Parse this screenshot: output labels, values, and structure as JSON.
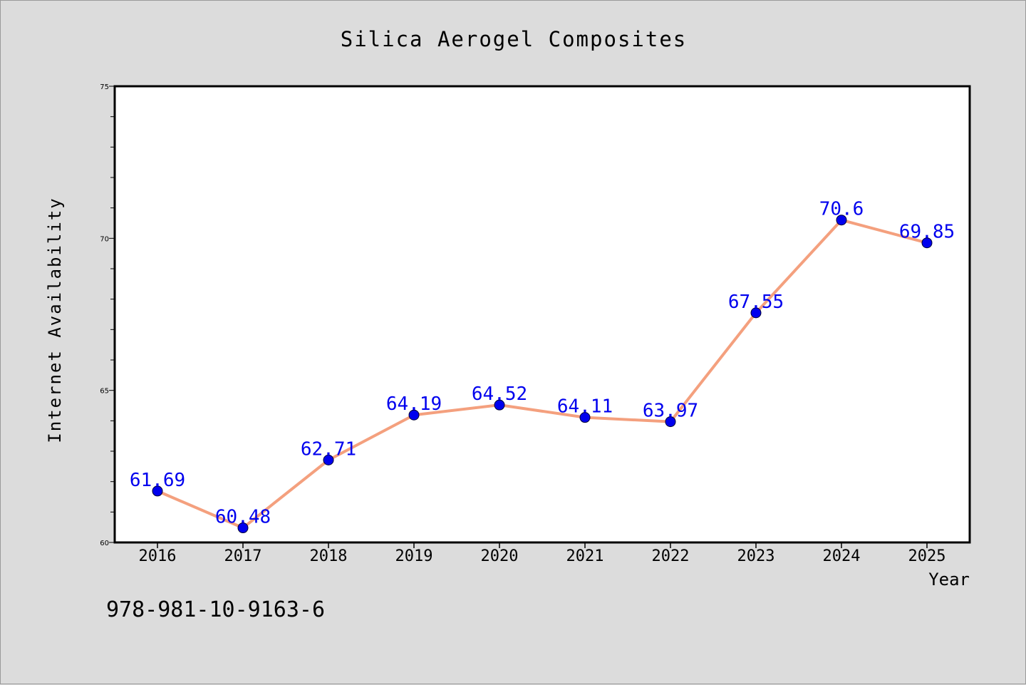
{
  "chart_data": {
    "type": "line",
    "title": "Silica Aerogel Composites",
    "xlabel": "Year",
    "ylabel": "Internet Availability",
    "categories": [
      "2016",
      "2017",
      "2018",
      "2019",
      "2020",
      "2021",
      "2022",
      "2023",
      "2024",
      "2025"
    ],
    "values": [
      61.69,
      60.48,
      62.71,
      64.19,
      64.52,
      64.11,
      63.97,
      67.55,
      70.6,
      69.85
    ],
    "data_labels": [
      "61.69",
      "60.48",
      "62.71",
      "64.19",
      "64.52",
      "64.11",
      "63.97",
      "67.55",
      "70.6",
      "69.85"
    ],
    "ylim": [
      60,
      75
    ],
    "y_ticks": [
      60,
      65,
      70,
      75
    ],
    "y_tick_labels": [
      "60",
      "65",
      "70",
      "75"
    ],
    "grid": false,
    "line_color": "#f4a07e",
    "marker_color": "#0000ee",
    "label_color": "#0000ee"
  },
  "footer": {
    "isbn": "978-981-10-9163-6"
  },
  "colors": {
    "background": "#dcdcdc",
    "plot_area": "#ffffff",
    "axis": "#000000"
  }
}
